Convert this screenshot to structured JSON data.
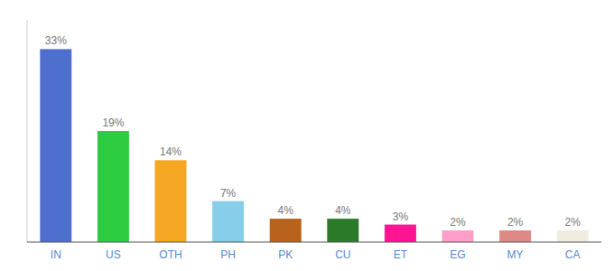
{
  "chart_data": {
    "type": "bar",
    "categories": [
      "IN",
      "US",
      "OTH",
      "PH",
      "PK",
      "CU",
      "ET",
      "EG",
      "MY",
      "CA"
    ],
    "values": [
      33,
      19,
      14,
      7,
      4,
      4,
      3,
      2,
      2,
      2
    ],
    "value_labels": [
      "33%",
      "19%",
      "14%",
      "7%",
      "4%",
      "4%",
      "3%",
      "2%",
      "2%",
      "2%"
    ],
    "colors": [
      "#4f6fce",
      "#2ecc40",
      "#f5a623",
      "#87ceeb",
      "#b8621b",
      "#2a7a2a",
      "#ff1493",
      "#ff9ec8",
      "#e08888",
      "#f0ece0"
    ],
    "ylim": [
      0,
      38
    ],
    "data_labels": true,
    "tick_labels": "x",
    "grid": false
  }
}
